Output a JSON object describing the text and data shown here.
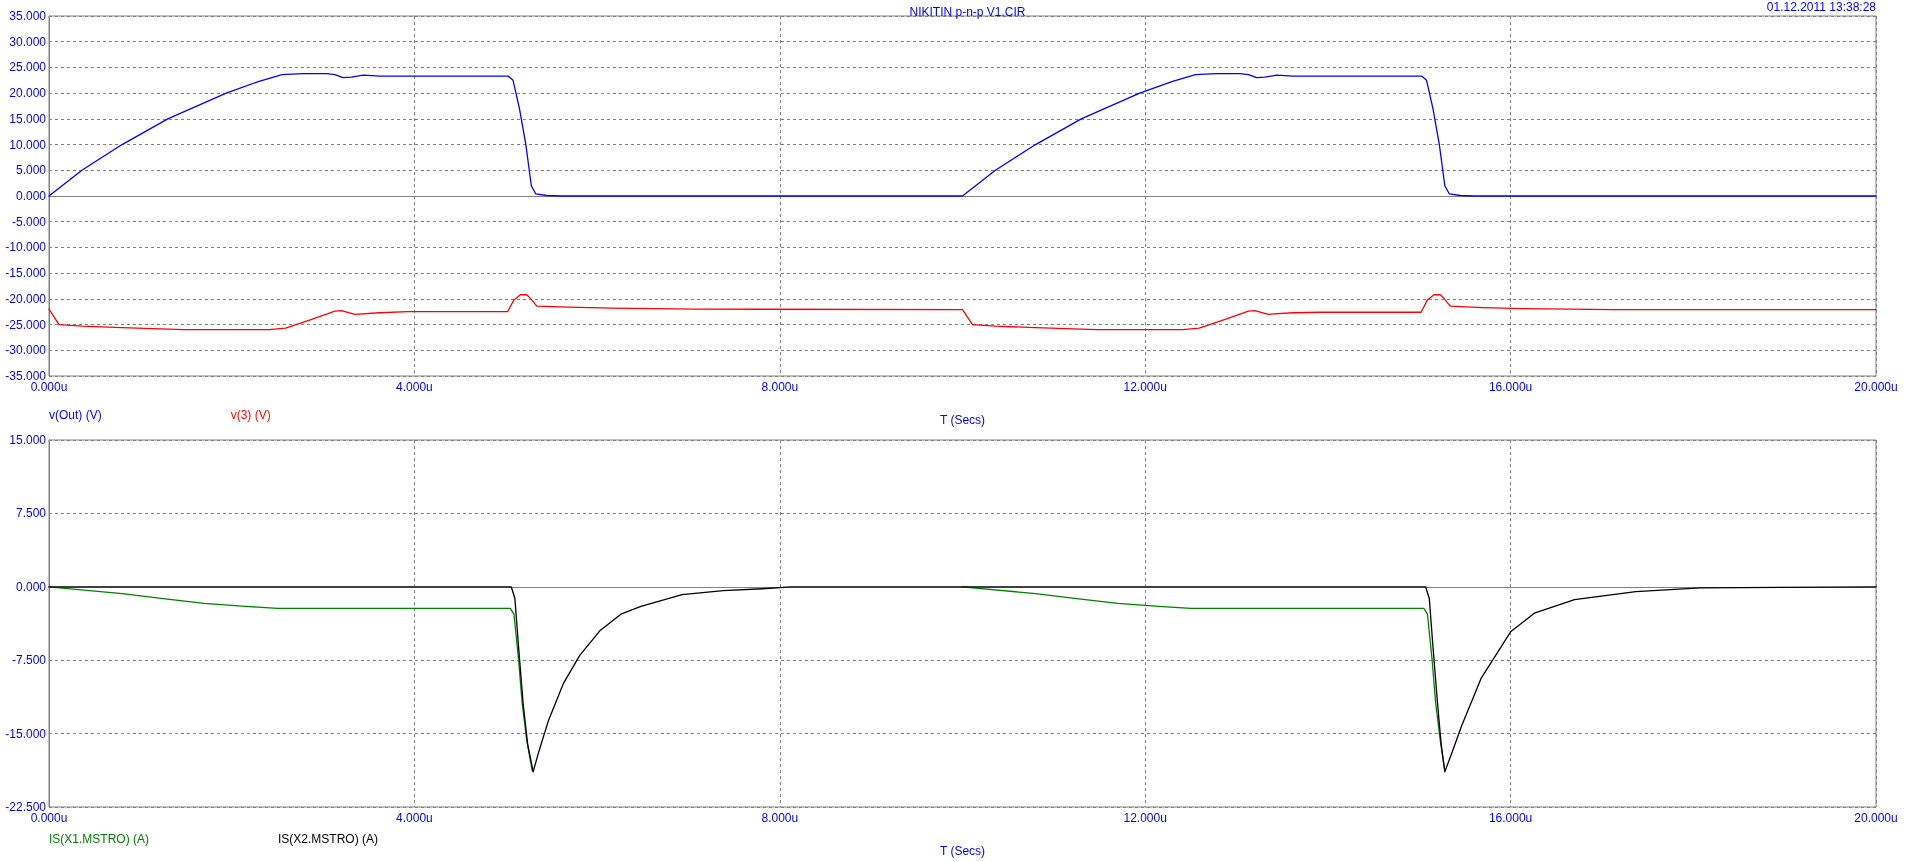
{
  "chart_data": [
    {
      "type": "line",
      "title": "NIKITIN p-n-p V1.CIR",
      "annotations": [
        "01.12.2011 13:38:28"
      ],
      "xlabel": "T (Secs)",
      "xlim": [
        0,
        20
      ],
      "xticks": [
        {
          "value": 0,
          "label": "0.000u"
        },
        {
          "value": 4,
          "label": "4.000u"
        },
        {
          "value": 8,
          "label": "8.000u"
        },
        {
          "value": 12,
          "label": "12.000u"
        },
        {
          "value": 16,
          "label": "16.000u"
        },
        {
          "value": 20,
          "label": "20.000u"
        }
      ],
      "ylim": [
        -35,
        35
      ],
      "yticks": [
        {
          "value": -35,
          "label": "-35.000"
        },
        {
          "value": -30,
          "label": "-30.000"
        },
        {
          "value": -25,
          "label": "-25.000"
        },
        {
          "value": -20,
          "label": "-20.000"
        },
        {
          "value": -15,
          "label": "-15.000"
        },
        {
          "value": -10,
          "label": "-10.000"
        },
        {
          "value": -5,
          "label": "-5.000"
        },
        {
          "value": 0,
          "label": "0.000"
        },
        {
          "value": 5,
          "label": "5.000"
        },
        {
          "value": 10,
          "label": "10.000"
        },
        {
          "value": 15,
          "label": "15.000"
        },
        {
          "value": 20,
          "label": "20.000"
        },
        {
          "value": 25,
          "label": "25.000"
        },
        {
          "value": 30,
          "label": "30.000"
        },
        {
          "value": 35,
          "label": "35.000"
        }
      ],
      "grid": true,
      "legend": "bottom left",
      "marker": "none",
      "line_style": "solid",
      "series": [
        {
          "name": "v(Out) (V)",
          "color": "#0000ff",
          "x": [
            0,
            0.36,
            0.8,
            1.3,
            1.94,
            2.3,
            2.55,
            2.77,
            3.04,
            3.13,
            3.22,
            3.31,
            3.44,
            3.62,
            5.03,
            5.08,
            5.15,
            5.22,
            5.28,
            5.33,
            5.45,
            5.6,
            10.0,
            10.36,
            10.8,
            11.3,
            11.94,
            12.3,
            12.55,
            12.77,
            13.04,
            13.13,
            13.22,
            13.31,
            13.44,
            13.62,
            15.03,
            15.08,
            15.15,
            15.22,
            15.28,
            15.33,
            15.45,
            15.6,
            20
          ],
          "values": [
            0,
            5,
            10,
            15,
            20,
            22.3,
            23.6,
            23.8,
            23.8,
            23.6,
            23.0,
            23.1,
            23.5,
            23.3,
            23.3,
            22.5,
            17,
            10,
            2,
            0.4,
            0.1,
            0,
            0,
            5,
            10,
            15,
            20,
            22.3,
            23.6,
            23.8,
            23.8,
            23.6,
            23.0,
            23.1,
            23.5,
            23.3,
            23.3,
            22.5,
            17,
            10,
            2,
            0.4,
            0.1,
            0,
            0
          ]
        },
        {
          "name": "v(3) (V)",
          "color": "#ff0000",
          "x": [
            0,
            0.11,
            0.36,
            0.8,
            1.47,
            2.41,
            2.59,
            2.86,
            3.13,
            3.2,
            3.35,
            3.62,
            3.93,
            5.02,
            5.09,
            5.16,
            5.23,
            5.27,
            5.34,
            5.68,
            6.17,
            7.08,
            10.0,
            10.11,
            10.36,
            10.8,
            11.47,
            12.41,
            12.59,
            12.86,
            13.13,
            13.2,
            13.35,
            13.62,
            13.93,
            15.02,
            15.09,
            15.16,
            15.23,
            15.27,
            15.34,
            15.7,
            16.13,
            17.13,
            20
          ],
          "values": [
            -22.0,
            -25.0,
            -25.3,
            -25.6,
            -26.0,
            -26.0,
            -25.7,
            -24.1,
            -22.4,
            -22.3,
            -23.0,
            -22.7,
            -22.5,
            -22.5,
            -20.2,
            -19.2,
            -19.2,
            -19.9,
            -21.4,
            -21.6,
            -21.8,
            -22.0,
            -22.1,
            -25.0,
            -25.3,
            -25.6,
            -26.0,
            -26.0,
            -25.7,
            -24.1,
            -22.4,
            -22.3,
            -23.0,
            -22.7,
            -22.6,
            -22.6,
            -20.2,
            -19.2,
            -19.2,
            -19.9,
            -21.4,
            -21.7,
            -21.9,
            -22.1,
            -22.1
          ]
        }
      ]
    },
    {
      "type": "line",
      "xlabel": "T (Secs)",
      "xlim": [
        0,
        20
      ],
      "xticks": [
        {
          "value": 0,
          "label": "0.000u"
        },
        {
          "value": 4,
          "label": "4.000u"
        },
        {
          "value": 8,
          "label": "8.000u"
        },
        {
          "value": 12,
          "label": "12.000u"
        },
        {
          "value": 16,
          "label": "16.000u"
        },
        {
          "value": 20,
          "label": "20.000u"
        }
      ],
      "ylim": [
        -22.5,
        15
      ],
      "yticks": [
        {
          "value": -22.5,
          "label": "-22.500"
        },
        {
          "value": -15,
          "label": "-15.000"
        },
        {
          "value": -7.5,
          "label": "-7.500"
        },
        {
          "value": 0,
          "label": "0.000"
        },
        {
          "value": 7.5,
          "label": "7.500"
        },
        {
          "value": 15,
          "label": "15.000"
        }
      ],
      "grid": true,
      "legend": "bottom left",
      "marker": "none",
      "line_style": "solid",
      "series": [
        {
          "name": "IS(X1.MSTRO) (A)",
          "color": "#008000",
          "x": [
            0,
            0.8,
            1.25,
            1.7,
            2.15,
            2.5,
            5.05,
            5.09,
            5.14,
            5.18,
            5.23,
            5.29,
            5.36,
            10.0,
            10.8,
            11.25,
            11.7,
            12.15,
            12.5,
            15.05,
            15.09,
            15.14,
            15.18,
            15.23,
            15.28
          ],
          "values": [
            0,
            -0.7,
            -1.2,
            -1.7,
            -2.0,
            -2.2,
            -2.2,
            -2.8,
            -7.4,
            -11.9,
            -15.7,
            -18.8,
            null,
            0,
            -0.7,
            -1.2,
            -1.7,
            -2.0,
            -2.2,
            -2.2,
            -2.8,
            -7.4,
            -11.9,
            -15.7,
            -18.8
          ]
        },
        {
          "name": "IS(X2.MSTRO) (A)",
          "color": "#000000",
          "x": [
            0,
            5.06,
            5.1,
            5.14,
            5.19,
            5.24,
            5.3,
            5.36,
            5.47,
            5.63,
            5.81,
            6.03,
            6.26,
            6.48,
            6.93,
            7.38,
            7.81,
            8.12,
            15.07,
            15.11,
            15.15,
            15.2,
            15.24,
            15.28,
            15.36,
            15.46,
            15.68,
            16.0,
            16.26,
            16.7,
            17.37,
            18.08,
            20
          ],
          "values": [
            0,
            0,
            -1.2,
            -6.1,
            -11.9,
            -16.1,
            -18.9,
            -16.9,
            -13.6,
            -9.9,
            -7.0,
            -4.5,
            -2.8,
            -2.0,
            -0.8,
            -0.4,
            -0.2,
            0,
            0,
            -1.2,
            -6.1,
            -11.9,
            -16.1,
            -18.9,
            -16.9,
            -14.3,
            -9.3,
            -4.6,
            -2.7,
            -1.3,
            -0.5,
            -0.1,
            0
          ]
        }
      ]
    }
  ]
}
